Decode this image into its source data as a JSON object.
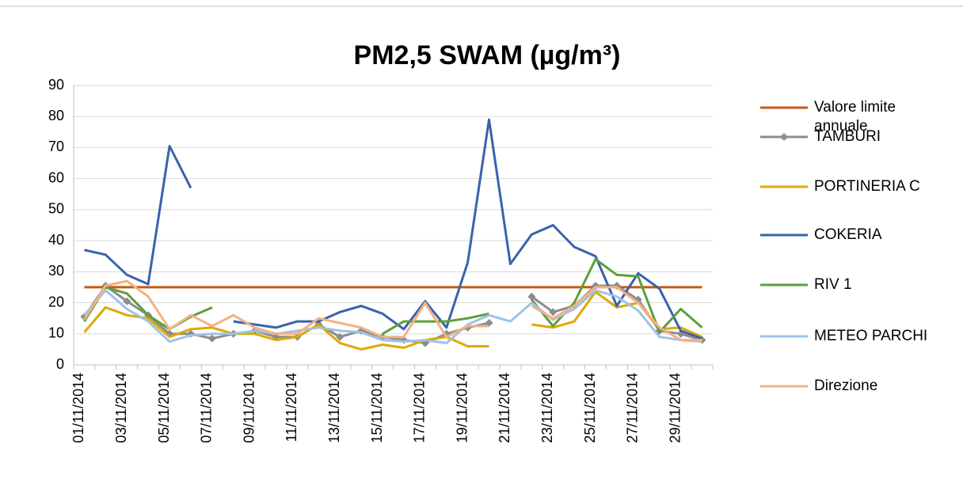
{
  "chart_data": {
    "type": "line",
    "title": "PM2,5 SWAM  (µg/m³)",
    "categories": [
      "01/11/2014",
      null,
      "03/11/2014",
      null,
      "05/11/2014",
      null,
      "07/11/2014",
      null,
      "09/11/2014",
      null,
      "11/11/2014",
      null,
      "13/11/2014",
      null,
      "15/11/2014",
      null,
      "17/11/2014",
      null,
      "19/11/2014",
      null,
      "21/11/2014",
      null,
      "23/11/2014",
      null,
      "25/11/2014",
      null,
      "27/11/2014",
      null,
      "29/11/2014",
      null
    ],
    "ylim": [
      0,
      90
    ],
    "yticks": [
      0,
      10,
      20,
      30,
      40,
      50,
      60,
      70,
      80,
      90
    ],
    "grid": true,
    "legend": "right",
    "series": [
      {
        "name": "Valore limite annuale",
        "color": "#c55a11",
        "values": [
          25,
          25,
          25,
          25,
          25,
          25,
          25,
          25,
          25,
          25,
          25,
          25,
          25,
          25,
          25,
          25,
          25,
          25,
          25,
          25,
          25,
          25,
          25,
          25,
          25,
          25,
          25,
          25,
          25,
          25
        ]
      },
      {
        "name": "TAMBURI",
        "color": "#8c8c8c",
        "marker": "diamond",
        "values": [
          15.5,
          25.5,
          20.5,
          16,
          10,
          10,
          8.5,
          10,
          11,
          9,
          9,
          13,
          9,
          11,
          9,
          8,
          7,
          10,
          12,
          13.5,
          null,
          22,
          17,
          19,
          25.5,
          25.5,
          21,
          11,
          10,
          8
        ]
      },
      {
        "name": "PORTINERIA C",
        "color": "#e0a800",
        "values": [
          10.5,
          18.5,
          16,
          15,
          9,
          11.5,
          12,
          10,
          10,
          8,
          9,
          13,
          7,
          5,
          6.5,
          5.5,
          8,
          9,
          6,
          6,
          null,
          13,
          12,
          14,
          23.5,
          18.5,
          20,
          11.5,
          12,
          9
        ]
      },
      {
        "name": "COKERIA",
        "color": "#3a62ad",
        "values": [
          37,
          35.5,
          29,
          26,
          70.5,
          57,
          null,
          14,
          13,
          12,
          14,
          14,
          17,
          19,
          16.5,
          11.5,
          20.5,
          12,
          33,
          79,
          32.5,
          42,
          45,
          38,
          35,
          19,
          29.5,
          24.5,
          11,
          8.5
        ]
      },
      {
        "name": "RIV 1",
        "color": "#5e9e3a",
        "values": [
          14,
          25,
          23,
          16,
          11.5,
          15.5,
          18.5,
          null,
          null,
          null,
          null,
          null,
          null,
          null,
          10,
          14,
          14,
          14,
          15,
          16.5,
          null,
          21,
          12.5,
          20,
          34,
          29,
          28.5,
          10.5,
          18,
          12
        ]
      },
      {
        "name": "METEO PARCHI",
        "color": "#9dc3e6",
        "values": [
          16,
          24,
          18,
          14,
          7.5,
          9.5,
          10,
          10,
          11,
          10,
          11,
          12,
          11,
          10.5,
          8,
          7.5,
          8,
          7,
          13,
          16,
          14,
          20,
          14.5,
          18,
          24,
          22,
          17.5,
          9,
          8,
          7.5
        ]
      },
      {
        "name": "Direzione",
        "color": "#f4b183",
        "values": [
          14.5,
          25.5,
          27,
          22,
          11.5,
          16,
          12.5,
          16,
          12,
          10,
          10,
          15,
          13.5,
          12,
          9,
          9,
          20,
          9,
          12.5,
          12.5,
          null,
          19,
          15,
          19,
          25,
          25,
          20,
          12,
          8,
          8
        ]
      }
    ]
  }
}
